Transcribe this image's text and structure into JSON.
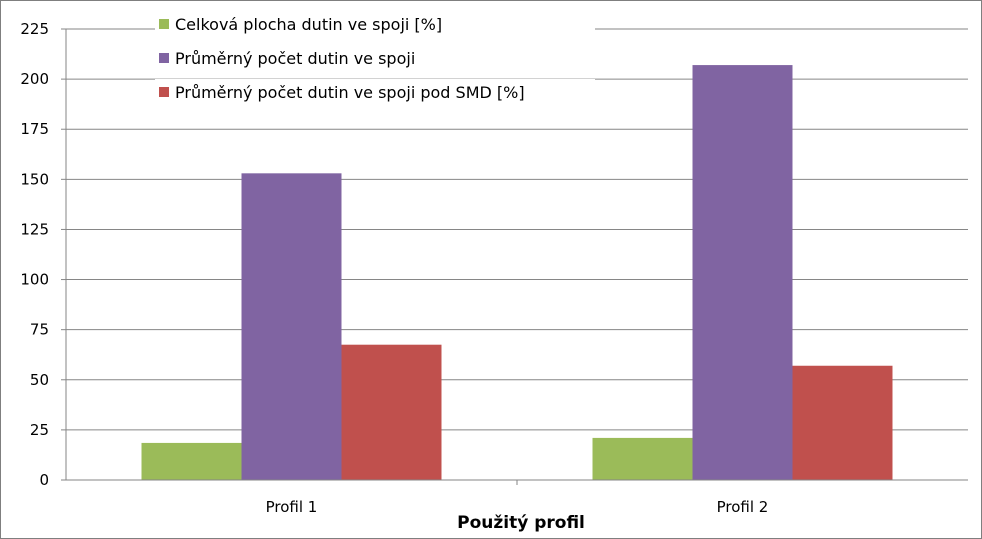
{
  "chart_data": {
    "type": "bar",
    "title": "",
    "xlabel": "Použitý profil",
    "ylabel": "",
    "categories": [
      "Profil 1",
      "Profil 2"
    ],
    "series": [
      {
        "name": "Celková plocha dutin ve spoji [%]",
        "values": [
          18.5,
          21
        ],
        "color": "#9BBB59"
      },
      {
        "name": "Průměrný počet dutin ve spoji",
        "values": [
          153,
          207
        ],
        "color": "#8064A2"
      },
      {
        "name": "Průměrný počet dutin ve spoji pod SMD [%]",
        "values": [
          67.5,
          57
        ],
        "color": "#C0504D"
      }
    ],
    "ylim": [
      0,
      225
    ],
    "yticks": [
      0,
      25,
      50,
      75,
      100,
      125,
      150,
      175,
      200,
      225
    ],
    "grid": true,
    "legend_position": "top-left"
  }
}
